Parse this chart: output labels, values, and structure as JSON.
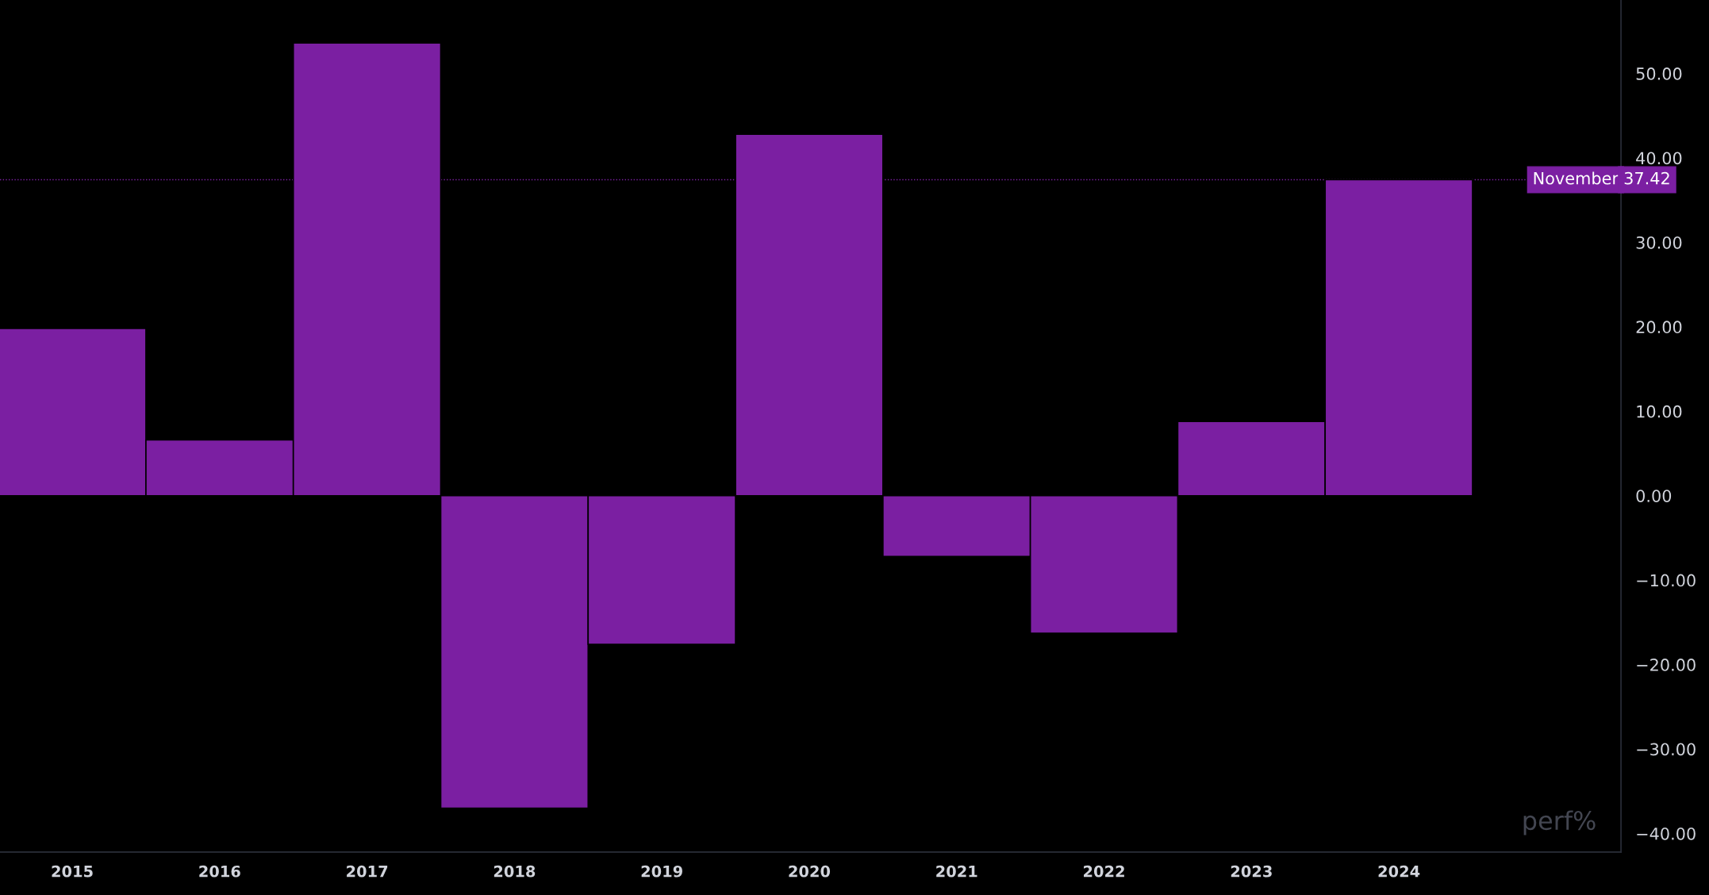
{
  "chart_data": {
    "type": "bar",
    "categories": [
      "2015",
      "2016",
      "2017",
      "2018",
      "2019",
      "2020",
      "2021",
      "2022",
      "2023",
      "2024",
      null
    ],
    "series": [
      {
        "color": "#7b1fa2",
        "values": [
          19.8,
          6.6,
          53.6,
          -37.0,
          -17.6,
          42.8,
          -7.2,
          -16.3,
          8.8,
          37.42,
          null
        ]
      }
    ],
    "ylim": [
      -42.2,
      58.7
    ],
    "yticks": [
      {
        "value": -40,
        "label": "−40.00"
      },
      {
        "value": -30,
        "label": "−30.00"
      },
      {
        "value": -20,
        "label": "−20.00"
      },
      {
        "value": -10,
        "label": "−10.00"
      },
      {
        "value": 0,
        "label": "0.00"
      },
      {
        "value": 10,
        "label": "10.00"
      },
      {
        "value": 20,
        "label": "20.00"
      },
      {
        "value": 30,
        "label": "30.00"
      },
      {
        "value": 40,
        "label": "40.00"
      },
      {
        "value": 50,
        "label": "50.00"
      }
    ],
    "ref_lines": [
      {
        "axis": "y",
        "value": 37.42,
        "label": "November",
        "color": "#7b1fa2",
        "line_style": "dotted"
      }
    ],
    "annotations": [
      "37.42",
      "perf%"
    ],
    "grid": false
  }
}
